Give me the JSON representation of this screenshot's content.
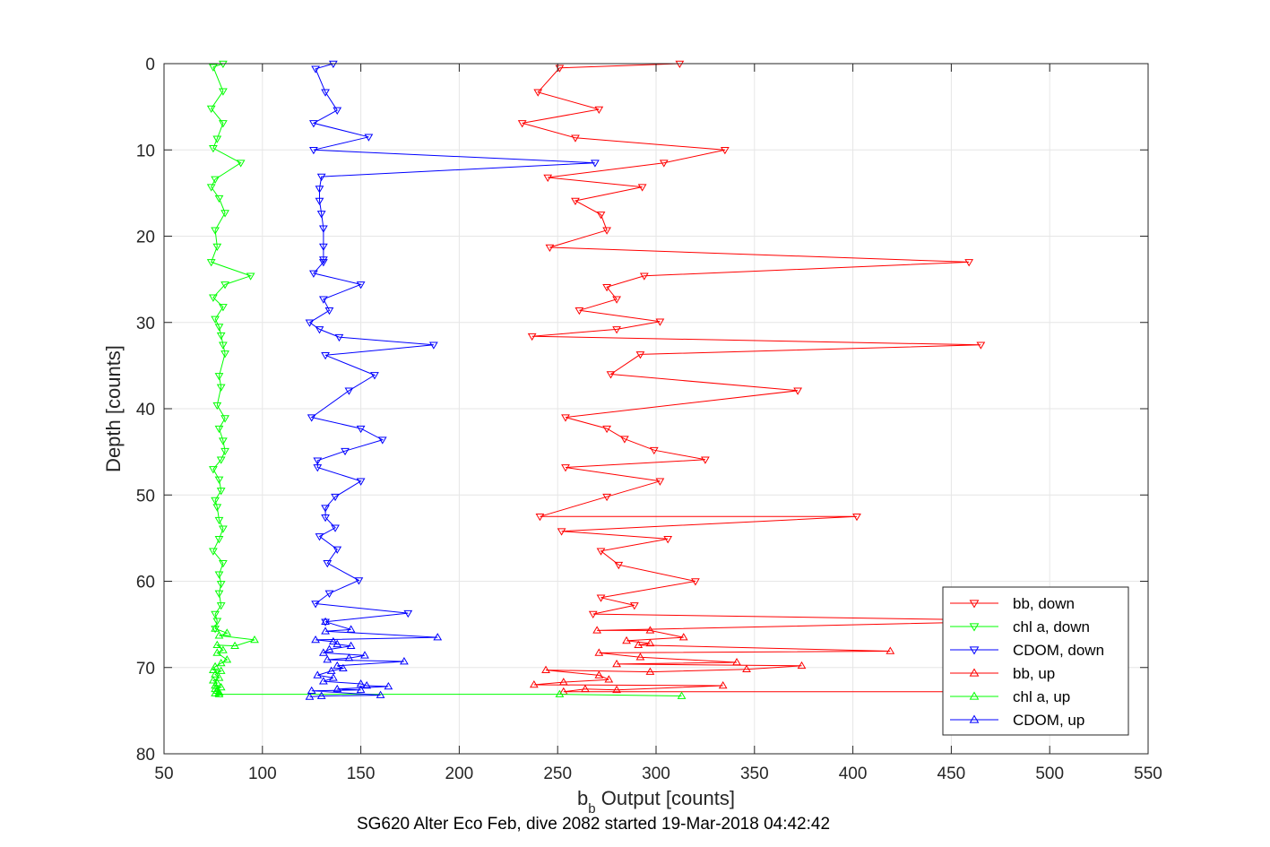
{
  "chart_data": {
    "type": "line",
    "title": "SG620 Alter Eco Feb, dive 2082 started 19-Mar-2018 04:42:42",
    "xlabel": {
      "main": "b",
      "sub": "b",
      "rest": " Output [counts]"
    },
    "ylabel": "Depth [counts]",
    "xlim": [
      50,
      550
    ],
    "ylim": [
      0,
      80
    ],
    "y_reversed": true,
    "grid": true,
    "legend_placement": "bottom-right",
    "xticks": [
      "50",
      "100",
      "150",
      "200",
      "250",
      "300",
      "350",
      "400",
      "450",
      "500",
      "550"
    ],
    "yticks": [
      "0",
      "10",
      "20",
      "30",
      "40",
      "50",
      "60",
      "70",
      "80"
    ],
    "series": [
      {
        "name": "bb, down",
        "color": "#ff0000",
        "marker": "triangle-down",
        "points": [
          [
            312,
            0
          ],
          [
            251,
            0.5
          ],
          [
            240,
            3.3
          ],
          [
            271,
            5.3
          ],
          [
            232,
            6.9
          ],
          [
            259,
            8.6
          ],
          [
            335,
            10
          ],
          [
            304,
            11.5
          ],
          [
            245,
            13.2
          ],
          [
            293,
            14.3
          ],
          [
            259,
            15.9
          ],
          [
            272,
            17.5
          ],
          [
            275,
            19.3
          ],
          [
            246,
            21.3
          ],
          [
            459,
            23
          ],
          [
            294,
            24.6
          ],
          [
            275,
            25.9
          ],
          [
            280,
            27.3
          ],
          [
            261,
            28.6
          ],
          [
            302,
            29.9
          ],
          [
            280,
            30.8
          ],
          [
            237,
            31.6
          ],
          [
            465,
            32.6
          ],
          [
            292,
            33.7
          ],
          [
            277,
            36
          ],
          [
            372,
            37.9
          ],
          [
            254,
            41
          ],
          [
            275,
            42.3
          ],
          [
            284,
            43.5
          ],
          [
            299,
            44.8
          ],
          [
            325,
            45.9
          ],
          [
            254,
            46.8
          ],
          [
            302,
            48.4
          ],
          [
            275,
            50.2
          ],
          [
            241,
            52.5
          ],
          [
            402,
            52.5
          ],
          [
            252,
            54.2
          ],
          [
            306,
            55.1
          ],
          [
            272,
            56.5
          ],
          [
            281,
            58.1
          ],
          [
            320,
            60
          ],
          [
            272,
            61.9
          ],
          [
            289,
            62.8
          ],
          [
            268,
            63.8
          ],
          [
            470,
            64.5
          ]
        ]
      },
      {
        "name": "chl a, down",
        "color": "#00ff00",
        "marker": "triangle-down",
        "points": [
          [
            80,
            0
          ],
          [
            75,
            0.4
          ],
          [
            80,
            3.2
          ],
          [
            74,
            5.2
          ],
          [
            80,
            6.9
          ],
          [
            77,
            8.7
          ],
          [
            75,
            9.8
          ],
          [
            89,
            11.5
          ],
          [
            76,
            13.4
          ],
          [
            74,
            14.3
          ],
          [
            78,
            15.6
          ],
          [
            81,
            17.3
          ],
          [
            76,
            19.3
          ],
          [
            77,
            21.2
          ],
          [
            74,
            23
          ],
          [
            94,
            24.6
          ],
          [
            81,
            25.6
          ],
          [
            75,
            27.1
          ],
          [
            80,
            28.2
          ],
          [
            76,
            29.6
          ],
          [
            78,
            30.5
          ],
          [
            79,
            31.5
          ],
          [
            80,
            32.6
          ],
          [
            81,
            33.6
          ],
          [
            78,
            36.2
          ],
          [
            79,
            37.5
          ],
          [
            77,
            39.6
          ],
          [
            81,
            41.1
          ],
          [
            78,
            42.3
          ],
          [
            80,
            43.7
          ],
          [
            81,
            44.9
          ],
          [
            79,
            45.9
          ],
          [
            75,
            47
          ],
          [
            78,
            48.2
          ],
          [
            79,
            49.5
          ],
          [
            76,
            50.6
          ],
          [
            77,
            51.4
          ],
          [
            78,
            52.9
          ],
          [
            80,
            53.9
          ],
          [
            78,
            55.1
          ],
          [
            75,
            56.5
          ],
          [
            80,
            57.9
          ],
          [
            78,
            59.2
          ],
          [
            79,
            60.3
          ],
          [
            78,
            61.4
          ],
          [
            79,
            62.8
          ],
          [
            76,
            63.8
          ],
          [
            77,
            64.6
          ],
          [
            76,
            65.5
          ]
        ]
      },
      {
        "name": "CDOM, down",
        "color": "#0000ff",
        "marker": "triangle-down",
        "points": [
          [
            136,
            0
          ],
          [
            127,
            0.6
          ],
          [
            132,
            3.3
          ],
          [
            138,
            5.4
          ],
          [
            126,
            6.9
          ],
          [
            154,
            8.5
          ],
          [
            126,
            10
          ],
          [
            269,
            11.5
          ],
          [
            130,
            13.1
          ],
          [
            129,
            14.5
          ],
          [
            129,
            15.9
          ],
          [
            130,
            17.4
          ],
          [
            131,
            19.1
          ],
          [
            131,
            21.2
          ],
          [
            131,
            22.7
          ],
          [
            131,
            23
          ],
          [
            126,
            24.3
          ],
          [
            150,
            25.6
          ],
          [
            131,
            27.3
          ],
          [
            134,
            28.6
          ],
          [
            124,
            30
          ],
          [
            129,
            30.8
          ],
          [
            139,
            31.7
          ],
          [
            187,
            32.6
          ],
          [
            132,
            33.8
          ],
          [
            157,
            36.1
          ],
          [
            144,
            37.9
          ],
          [
            125,
            41
          ],
          [
            150,
            42.3
          ],
          [
            161,
            43.6
          ],
          [
            142,
            44.9
          ],
          [
            128,
            46
          ],
          [
            128,
            46.8
          ],
          [
            150,
            48.4
          ],
          [
            137,
            50.2
          ],
          [
            132,
            51.5
          ],
          [
            132,
            52.6
          ],
          [
            137,
            53.8
          ],
          [
            129,
            54.8
          ],
          [
            138,
            56.3
          ],
          [
            133,
            57.9
          ],
          [
            149,
            59.9
          ],
          [
            134,
            61.4
          ],
          [
            127,
            62.6
          ],
          [
            174,
            63.7
          ],
          [
            132,
            64.7
          ]
        ]
      },
      {
        "name": "bb, up",
        "color": "#ff0000",
        "marker": "triangle-up",
        "points": [
          [
            470,
            64.7
          ],
          [
            270,
            65.7
          ],
          [
            297,
            65.7
          ],
          [
            314,
            66.5
          ],
          [
            285,
            66.9
          ],
          [
            297,
            67.2
          ],
          [
            291,
            67.4
          ],
          [
            419,
            68.1
          ],
          [
            271,
            68.3
          ],
          [
            292,
            68.8
          ],
          [
            341,
            69.4
          ],
          [
            280,
            69.6
          ],
          [
            374,
            69.8
          ],
          [
            346,
            70.2
          ],
          [
            297,
            70.5
          ],
          [
            244,
            70.3
          ],
          [
            271,
            70.9
          ],
          [
            276,
            71.4
          ],
          [
            253,
            71.7
          ],
          [
            238,
            72
          ],
          [
            334,
            72.1
          ],
          [
            280,
            72.6
          ],
          [
            264,
            72.5
          ],
          [
            253,
            72.8
          ],
          [
            470,
            72.8
          ]
        ]
      },
      {
        "name": "chl a, up",
        "color": "#00ff00",
        "marker": "triangle-up",
        "points": [
          [
            76,
            65.5
          ],
          [
            82,
            66
          ],
          [
            78,
            66.3
          ],
          [
            96,
            66.8
          ],
          [
            86,
            67.5
          ],
          [
            77,
            67.4
          ],
          [
            80,
            68
          ],
          [
            77,
            68.3
          ],
          [
            82,
            69.1
          ],
          [
            79,
            69.5
          ],
          [
            76,
            69.9
          ],
          [
            75,
            70.3
          ],
          [
            79,
            70.4
          ],
          [
            76,
            70.8
          ],
          [
            78,
            71.2
          ],
          [
            75,
            71.5
          ],
          [
            77,
            71.8
          ],
          [
            76,
            72.1
          ],
          [
            79,
            72.3
          ],
          [
            76,
            72.5
          ],
          [
            77,
            72.7
          ],
          [
            78,
            72.9
          ],
          [
            76,
            73
          ],
          [
            78,
            73.1
          ],
          [
            251,
            73.1
          ],
          [
            313,
            73.3
          ]
        ]
      },
      {
        "name": "CDOM, up",
        "color": "#0000ff",
        "marker": "triangle-up",
        "points": [
          [
            132,
            64.7
          ],
          [
            145,
            65.6
          ],
          [
            132,
            65.8
          ],
          [
            189,
            66.5
          ],
          [
            127,
            66.8
          ],
          [
            136,
            67
          ],
          [
            138,
            67.3
          ],
          [
            145,
            67.5
          ],
          [
            134,
            67.9
          ],
          [
            131,
            68.3
          ],
          [
            152,
            68.6
          ],
          [
            144,
            68.9
          ],
          [
            133,
            69.1
          ],
          [
            172,
            69.3
          ],
          [
            138,
            69.8
          ],
          [
            141,
            70.1
          ],
          [
            135,
            70.4
          ],
          [
            128,
            70.9
          ],
          [
            136,
            71.2
          ],
          [
            131,
            71.6
          ],
          [
            150,
            71.9
          ],
          [
            153,
            72.1
          ],
          [
            164,
            72.2
          ],
          [
            138,
            72.5
          ],
          [
            150,
            72.6
          ],
          [
            125,
            72.7
          ],
          [
            160,
            73.2
          ],
          [
            130,
            73.3
          ],
          [
            124,
            73.4
          ]
        ]
      }
    ]
  }
}
